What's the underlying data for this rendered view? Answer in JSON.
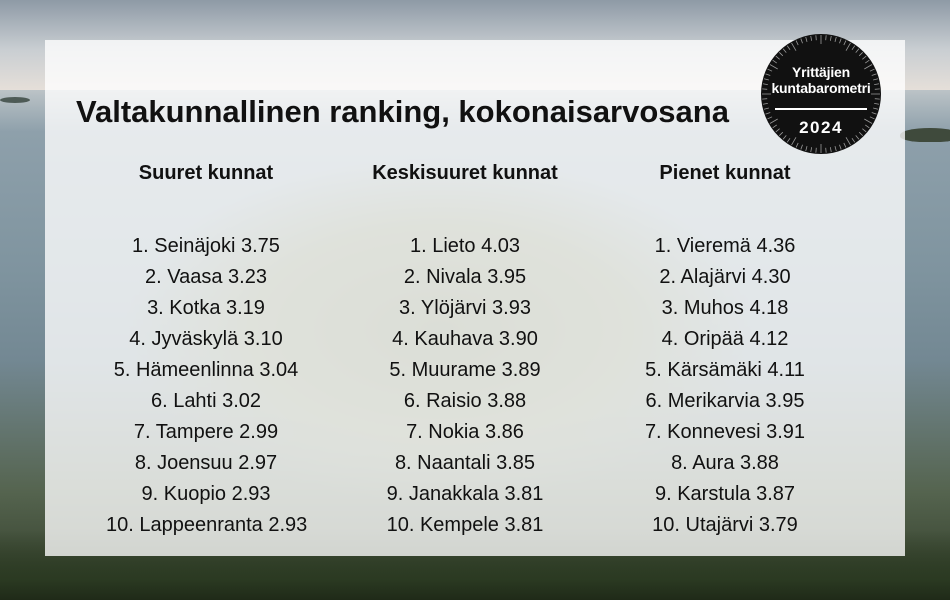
{
  "title": "Valtakunnallinen ranking, kokonaisarvosana",
  "badge": {
    "line1": "Yrittäjien",
    "line2": "kuntabarometri",
    "year": "2024"
  },
  "columns": [
    {
      "heading": "Suuret kunnat",
      "items": [
        "1. Seinäjoki 3.75",
        "2. Vaasa 3.23",
        "3. Kotka 3.19",
        "4. Jyväskylä 3.10",
        "5. Hämeenlinna 3.04",
        "6. Lahti 3.02",
        "7. Tampere 2.99",
        "8. Joensuu 2.97",
        "9. Kuopio 2.93",
        "10. Lappeenranta 2.93"
      ]
    },
    {
      "heading": "Keskisuuret kunnat",
      "items": [
        "1. Lieto 4.03",
        "2. Nivala 3.95",
        "3. Ylöjärvi 3.93",
        "4. Kauhava 3.90",
        "5. Muurame 3.89",
        "6. Raisio 3.88",
        "7. Nokia 3.86",
        "8. Naantali 3.85",
        "9. Janakkala 3.81",
        "10. Kempele 3.81"
      ]
    },
    {
      "heading": "Pienet kunnat",
      "items": [
        "1. Vieremä 4.36",
        "2. Alajärvi 4.30",
        "3. Muhos 4.18",
        "4. Oripää 4.12",
        "5. Kärsämäki 4.11",
        "6. Merikarvia 3.95",
        "7. Konnevesi 3.91",
        "8. Aura 3.88",
        "9. Karstula 3.87",
        "10. Utajärvi 3.79"
      ]
    }
  ]
}
